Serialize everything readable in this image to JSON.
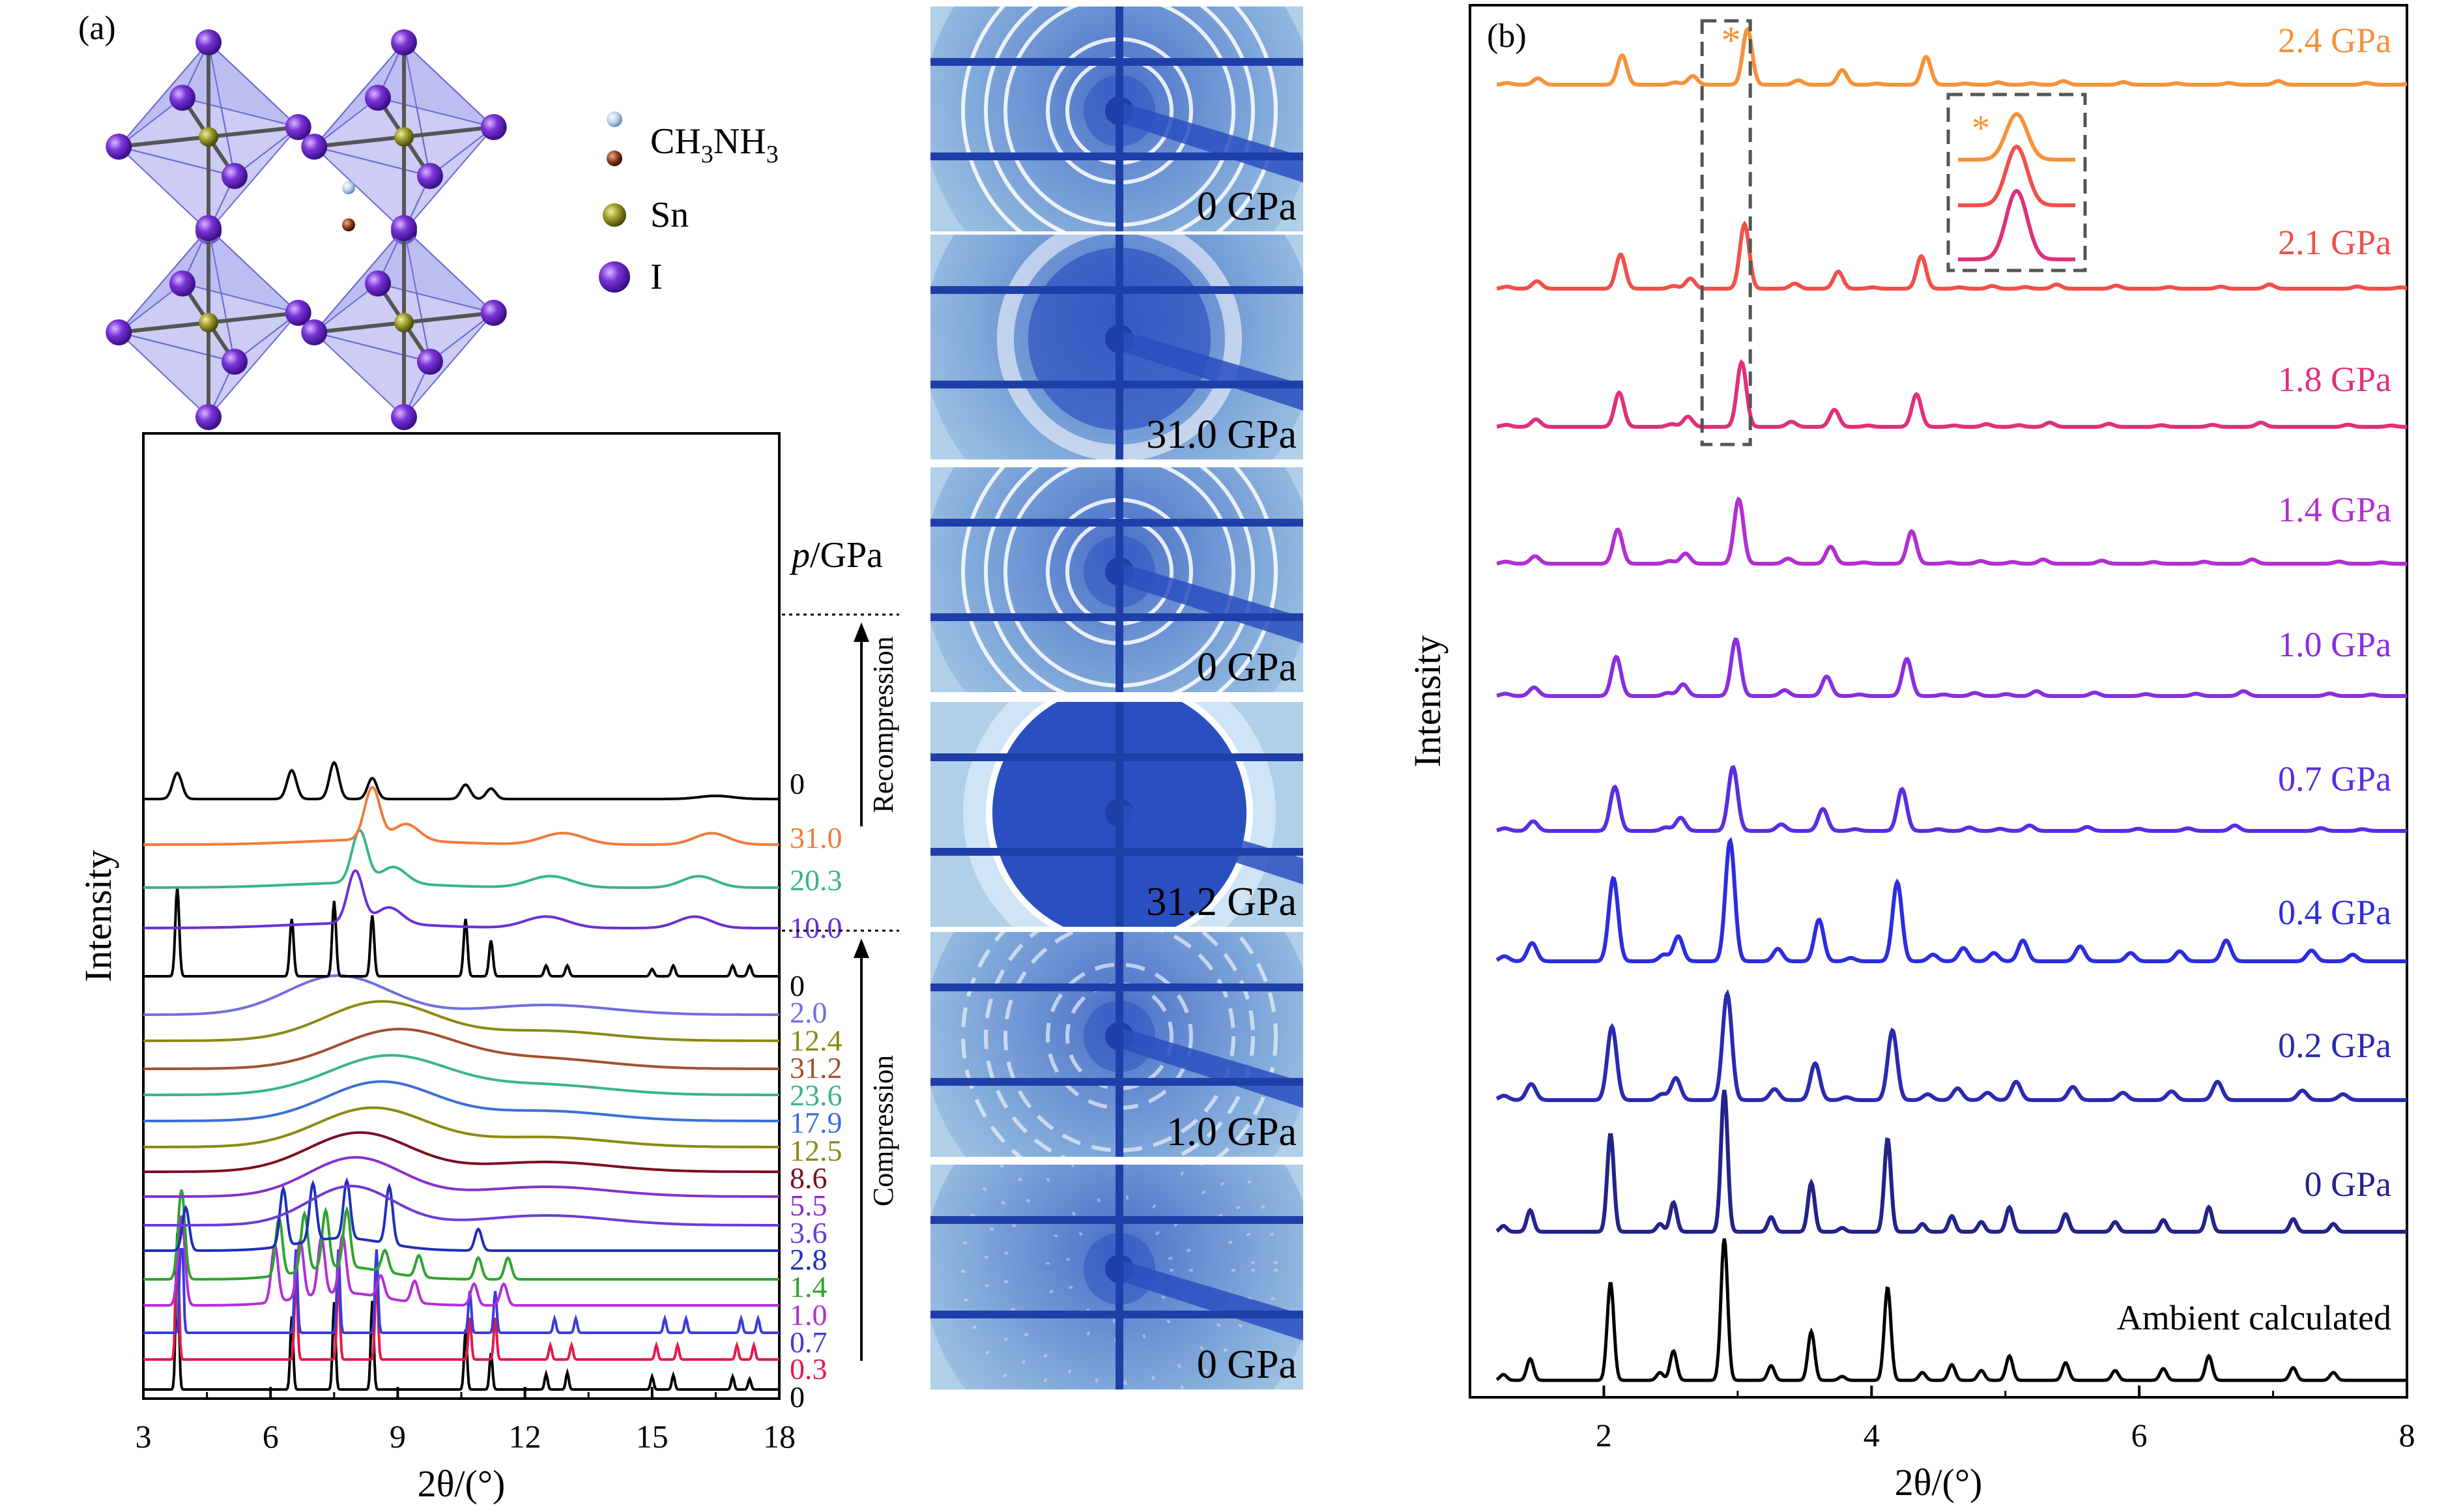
{
  "panel_a_label": "(a)",
  "panel_b_label": "(b)",
  "legend": [
    {
      "label": "CH3NH3",
      "sub": "3",
      "text_parts": [
        "CH",
        "3",
        "NH",
        "3"
      ],
      "color": "#b9cfe8"
    },
    {
      "label": "Sn",
      "color": "#9b9a2a"
    },
    {
      "label": "I",
      "color": "#7a33d6"
    }
  ],
  "legend_text": {
    "ch3nh3_a": "CH",
    "ch3nh3_b": "3",
    "ch3nh3_c": "NH",
    "ch3nh3_d": "3",
    "sn": "Sn",
    "i": "I"
  },
  "colors": {
    "crystal_octahedron": "#8f8fe6",
    "iodine": "#6a2bc9",
    "detector_bg": "#a9cbe6",
    "detector_dark": "#1f3fa8"
  },
  "detector_images": [
    {
      "label": "0 GPa",
      "kind": "rings"
    },
    {
      "label": "31.0 GPa",
      "kind": "diffuse"
    },
    {
      "label": "0 GPa",
      "kind": "rings"
    },
    {
      "label": "31.2 GPa",
      "kind": "amorphous"
    },
    {
      "label": "1.0 GPa",
      "kind": "spotty"
    },
    {
      "label": "0 GPa",
      "kind": "spots"
    }
  ],
  "chart_data": [
    {
      "type": "line",
      "panel": "a",
      "xlabel": "2θ/(°)",
      "ylabel": "Intensity",
      "xlim": [
        3,
        18
      ],
      "xticks": [
        3,
        6,
        9,
        12,
        15,
        18
      ],
      "xtick_labels": [
        "3",
        "6",
        "9",
        "12",
        "15",
        "18"
      ],
      "pressure_header": "p/GPa",
      "pressure_header_p": "p",
      "pressure_header_unit": "/GPa",
      "annotations": {
        "recompression": "Recompression",
        "compression": "Compression"
      },
      "series": [
        {
          "name": "0",
          "color": "#000000",
          "kind": "crystal",
          "peaks": [
            3.8,
            6.5,
            7.5,
            8.4,
            10.6,
            11.2,
            12.5,
            13.0,
            15.0,
            15.5,
            16.9,
            17.3
          ]
        },
        {
          "name": "0.3",
          "color": "#e31a4a",
          "kind": "crystal",
          "peaks": [
            3.8,
            6.6,
            7.6,
            8.5,
            10.7,
            11.3,
            12.6,
            13.1,
            15.1,
            15.6,
            17.0,
            17.4
          ]
        },
        {
          "name": "0.7",
          "color": "#3b3bdb",
          "kind": "crystal",
          "peaks": [
            3.9,
            6.6,
            7.6,
            8.5,
            10.7,
            11.3,
            12.7,
            13.2,
            15.3,
            15.8,
            17.1,
            17.5
          ]
        },
        {
          "name": "1.0",
          "color": "#b22fd6",
          "kind": "mixed",
          "peaks": [
            3.9,
            6.1,
            6.7,
            7.2,
            7.7,
            8.6,
            9.4,
            10.8,
            11.5
          ]
        },
        {
          "name": "1.4",
          "color": "#2fa32f",
          "kind": "mixed",
          "peaks": [
            3.9,
            6.2,
            6.8,
            7.3,
            7.8,
            8.7,
            9.5,
            10.9,
            11.6
          ]
        },
        {
          "name": "2.8",
          "color": "#1d2fb8",
          "kind": "mixed",
          "peaks": [
            4.0,
            6.3,
            7.0,
            7.8,
            8.8,
            10.9
          ]
        },
        {
          "name": "3.6",
          "color": "#6b3bd6",
          "kind": "broad",
          "center": 7.9,
          "width": 1.0
        },
        {
          "name": "5.5",
          "color": "#8a2fc9",
          "kind": "broad",
          "center": 8.0,
          "width": 1.1
        },
        {
          "name": "8.6",
          "color": "#7a0f1f",
          "kind": "broad",
          "center": 8.1,
          "width": 1.2
        },
        {
          "name": "12.5",
          "color": "#8a8a14",
          "kind": "broad",
          "center": 8.4,
          "width": 1.3
        },
        {
          "name": "17.9",
          "color": "#3b6fd6",
          "kind": "broad",
          "center": 8.6,
          "width": 1.3
        },
        {
          "name": "23.6",
          "color": "#3bb38a",
          "kind": "broad",
          "center": 8.8,
          "width": 1.4
        },
        {
          "name": "31.2",
          "color": "#a0522d",
          "kind": "broad",
          "center": 9.0,
          "width": 1.4
        },
        {
          "name": "12.4",
          "color": "#8a8a14",
          "kind": "broad",
          "center": 8.6,
          "width": 1.3
        },
        {
          "name": "2.0",
          "color": "#6f6fe0",
          "kind": "broad",
          "center": 7.6,
          "width": 1.2
        },
        {
          "name": "0",
          "color": "#000000",
          "kind": "crystal",
          "peaks": [
            3.8,
            6.5,
            7.5,
            8.4,
            10.6,
            11.2,
            12.5,
            13.0,
            15.0,
            15.5,
            16.9,
            17.3
          ]
        },
        {
          "name": "10.0",
          "color": "#6b2fd6",
          "kind": "recomp",
          "center": 8.0
        },
        {
          "name": "20.3",
          "color": "#3bb38a",
          "kind": "recomp",
          "center": 8.1
        },
        {
          "name": "31.0",
          "color": "#f07a3a",
          "kind": "recomp",
          "center": 8.4
        },
        {
          "name": "0",
          "color": "#000000",
          "kind": "recovered",
          "peaks": [
            3.8,
            6.5,
            7.5,
            8.4,
            10.6,
            11.2
          ]
        }
      ]
    },
    {
      "type": "line",
      "panel": "b",
      "xlabel": "2θ/(°)",
      "ylabel": "Intensity",
      "xlim": [
        1,
        8
      ],
      "xticks": [
        2,
        4,
        6,
        8
      ],
      "xtick_labels": [
        "2",
        "4",
        "6",
        "8"
      ],
      "peak_positions": [
        1.25,
        1.45,
        2.05,
        2.42,
        2.52,
        2.9,
        3.25,
        3.55,
        3.78,
        4.12,
        4.38,
        4.6,
        4.82,
        5.03,
        5.45,
        5.82,
        6.18,
        6.52,
        7.15,
        7.45
      ],
      "series": [
        {
          "name": "Ambient calculated",
          "color": "#000000",
          "scale": 1.0
        },
        {
          "name": "0 GPa",
          "color": "#23238a",
          "scale": 1.0
        },
        {
          "name": "0.2 GPa",
          "color": "#2a2ab0",
          "scale": 0.75
        },
        {
          "name": "0.4 GPa",
          "color": "#2c2ce0",
          "scale": 0.85
        },
        {
          "name": "0.7 GPa",
          "color": "#5a2de0",
          "scale": 0.45
        },
        {
          "name": "1.0 GPa",
          "color": "#8a2de0",
          "scale": 0.4
        },
        {
          "name": "1.4 GPa",
          "color": "#b22fd0",
          "scale": 0.35
        },
        {
          "name": "1.8 GPa",
          "color": "#e0307a",
          "scale": 0.35
        },
        {
          "name": "2.1 GPa",
          "color": "#f0504a",
          "scale": 0.35
        },
        {
          "name": "2.4 GPa",
          "color": "#f5923a",
          "scale": 0.3
        }
      ],
      "marker": "*"
    }
  ]
}
